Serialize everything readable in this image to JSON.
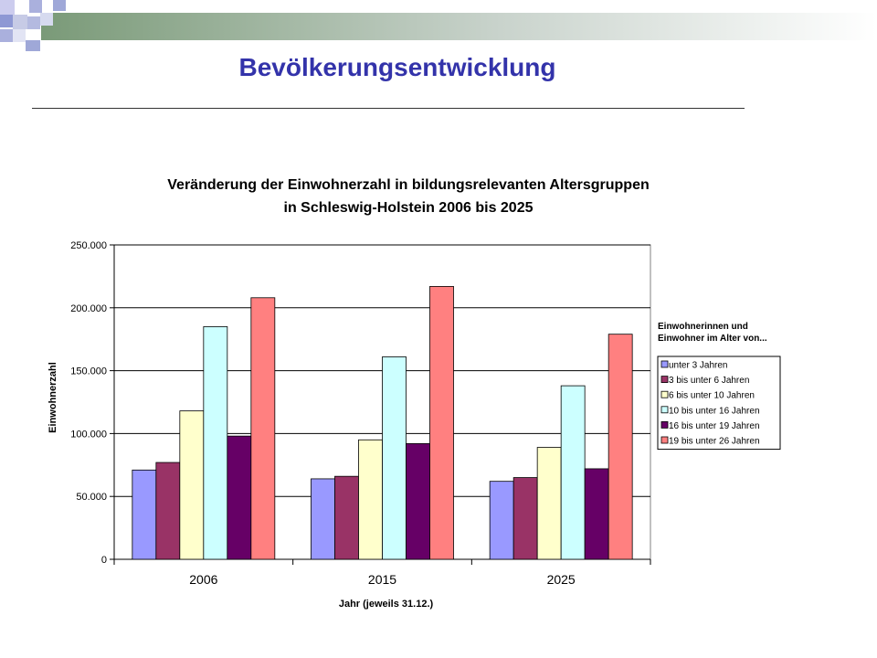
{
  "slide": {
    "title": "Bevölkerungsentwicklung"
  },
  "chart_data": {
    "type": "bar",
    "title_lines": [
      "Veränderung der Einwohnerzahl in bildungsrelevanten Altersgruppen",
      "in Schleswig-Holstein 2006 bis 2025"
    ],
    "xlabel": "Jahr (jeweils 31.12.)",
    "ylabel": "Einwohnerzahl",
    "ylim": [
      0,
      250000
    ],
    "yticks": [
      0,
      50000,
      100000,
      150000,
      200000,
      250000
    ],
    "ytick_labels": [
      "0",
      "50.000",
      "100.000",
      "150.000",
      "200.000",
      "250.000"
    ],
    "grid": true,
    "legend_title_lines": [
      "Einwohnerinnen und",
      "Einwohner im Alter von..."
    ],
    "legend_position": "right",
    "categories": [
      "2006",
      "2015",
      "2025"
    ],
    "series": [
      {
        "name": "unter 3 Jahren",
        "color": "#9999ff",
        "values": [
          71000,
          64000,
          62000
        ]
      },
      {
        "name": "3 bis unter 6 Jahren",
        "color": "#993366",
        "values": [
          77000,
          66000,
          65000
        ]
      },
      {
        "name": "6 bis unter 10 Jahren",
        "color": "#ffffcc",
        "values": [
          118000,
          95000,
          89000
        ]
      },
      {
        "name": "10 bis unter 16 Jahren",
        "color": "#ccffff",
        "values": [
          185000,
          161000,
          138000
        ]
      },
      {
        "name": "16 bis unter 19 Jahren",
        "color": "#660066",
        "values": [
          98000,
          92000,
          72000
        ]
      },
      {
        "name": "19 bis unter 26 Jahren",
        "color": "#ff8080",
        "values": [
          208000,
          217000,
          179000
        ]
      }
    ]
  }
}
